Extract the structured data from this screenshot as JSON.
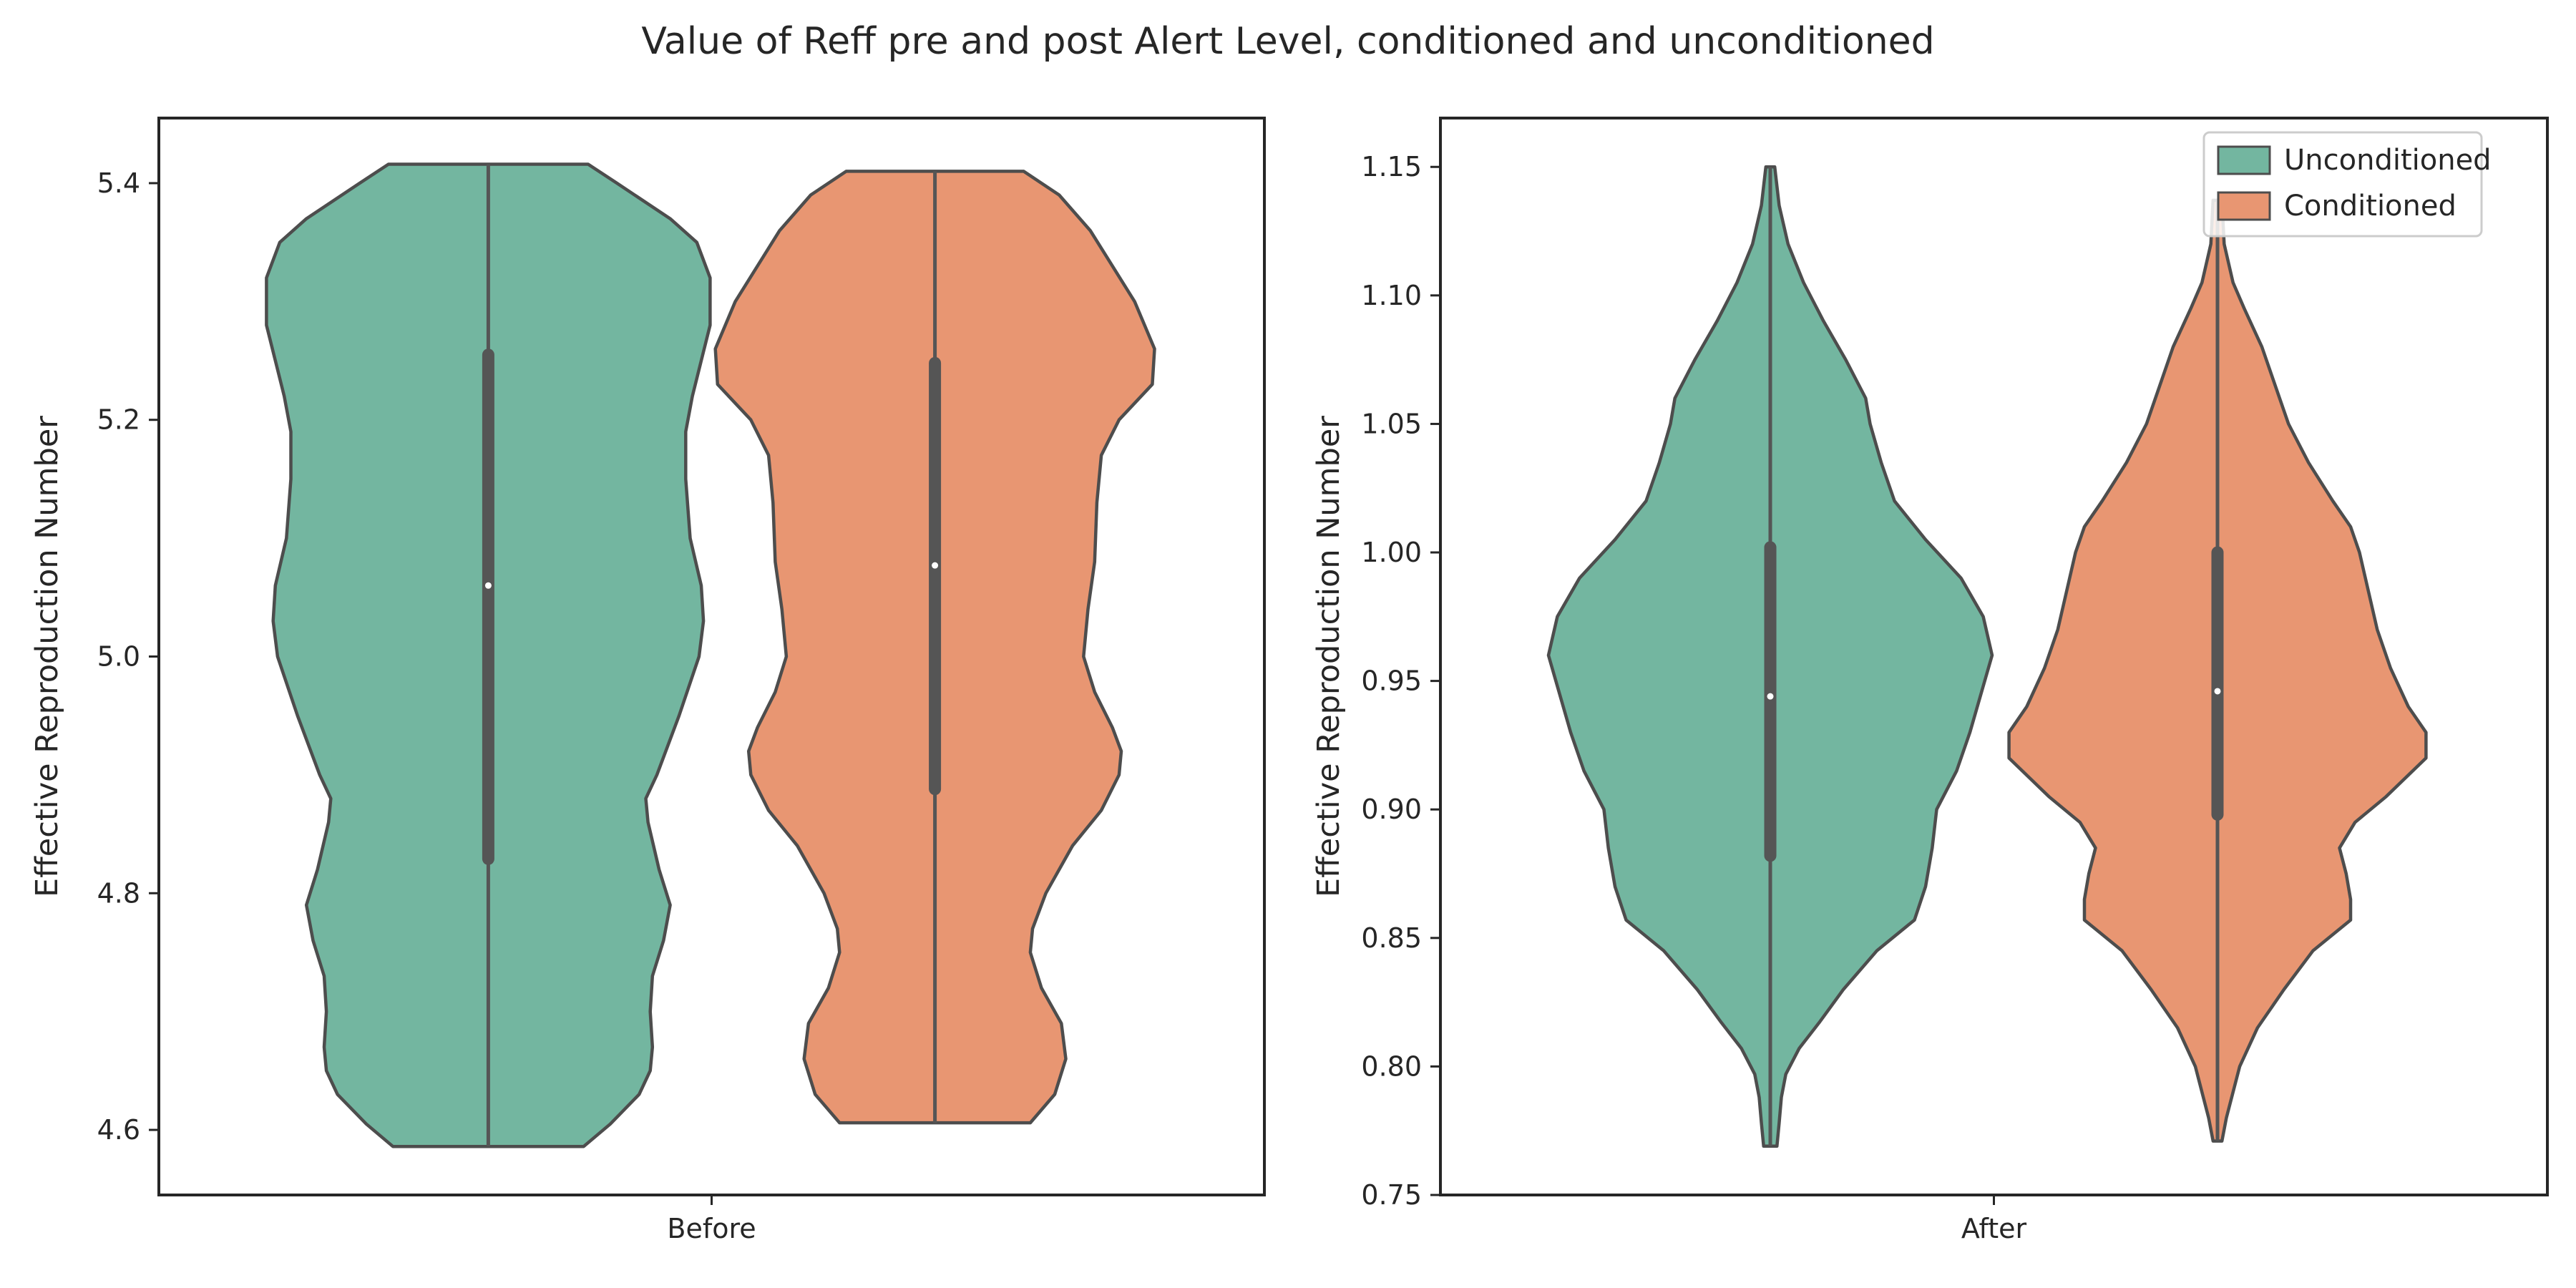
{
  "figure": {
    "title": "Value of Reff pre and post Alert Level, conditioned and unconditioned"
  },
  "colors": {
    "Unconditioned": "#73b6a0",
    "Conditioned": "#e89672",
    "outline": "#4d4d4d",
    "box": "#555555",
    "median": "#ffffff",
    "axes": "#262626"
  },
  "legend": {
    "placement": "top-right of right panel",
    "items": [
      {
        "label": "Unconditioned",
        "color": "#73b6a0"
      },
      {
        "label": "Conditioned",
        "color": "#e89672"
      }
    ]
  },
  "chart_data": [
    {
      "type": "violin",
      "category": "Before",
      "ylabel": "Effective Reproduction Number",
      "ylim": [
        4.545,
        5.455
      ],
      "yticks": [
        4.6,
        4.8,
        5.0,
        5.2,
        5.4
      ],
      "ytick_labels": [
        "4.6",
        "4.8",
        "5.0",
        "5.2",
        "5.4"
      ],
      "series": [
        {
          "name": "Unconditioned",
          "min": 4.586,
          "max": 5.416,
          "q1": 4.829,
          "median": 5.06,
          "q3": 5.255,
          "profile": [
            [
              4.586,
              0.43
            ],
            [
              4.605,
              0.55
            ],
            [
              4.63,
              0.68
            ],
            [
              4.65,
              0.73
            ],
            [
              4.67,
              0.74
            ],
            [
              4.7,
              0.73
            ],
            [
              4.73,
              0.74
            ],
            [
              4.76,
              0.79
            ],
            [
              4.79,
              0.82
            ],
            [
              4.82,
              0.77
            ],
            [
              4.86,
              0.72
            ],
            [
              4.88,
              0.71
            ],
            [
              4.9,
              0.76
            ],
            [
              4.95,
              0.86
            ],
            [
              5.0,
              0.95
            ],
            [
              5.03,
              0.97
            ],
            [
              5.06,
              0.96
            ],
            [
              5.1,
              0.91
            ],
            [
              5.15,
              0.89
            ],
            [
              5.19,
              0.89
            ],
            [
              5.22,
              0.92
            ],
            [
              5.25,
              0.96
            ],
            [
              5.28,
              1.0
            ],
            [
              5.32,
              1.0
            ],
            [
              5.35,
              0.94
            ],
            [
              5.37,
              0.82
            ],
            [
              5.4,
              0.58
            ],
            [
              5.416,
              0.45
            ]
          ]
        },
        {
          "name": "Conditioned",
          "min": 4.606,
          "max": 5.41,
          "q1": 4.888,
          "median": 5.077,
          "q3": 5.248,
          "profile": [
            [
              4.606,
              0.43
            ],
            [
              4.63,
              0.54
            ],
            [
              4.66,
              0.59
            ],
            [
              4.69,
              0.57
            ],
            [
              4.72,
              0.48
            ],
            [
              4.75,
              0.43
            ],
            [
              4.77,
              0.44
            ],
            [
              4.8,
              0.5
            ],
            [
              4.84,
              0.62
            ],
            [
              4.87,
              0.75
            ],
            [
              4.9,
              0.83
            ],
            [
              4.92,
              0.84
            ],
            [
              4.94,
              0.8
            ],
            [
              4.97,
              0.72
            ],
            [
              5.0,
              0.67
            ],
            [
              5.04,
              0.69
            ],
            [
              5.08,
              0.72
            ],
            [
              5.13,
              0.73
            ],
            [
              5.17,
              0.75
            ],
            [
              5.2,
              0.83
            ],
            [
              5.23,
              0.98
            ],
            [
              5.26,
              0.99
            ],
            [
              5.3,
              0.9
            ],
            [
              5.33,
              0.8
            ],
            [
              5.36,
              0.7
            ],
            [
              5.39,
              0.56
            ],
            [
              5.41,
              0.4
            ]
          ]
        }
      ],
      "xtick_labels": [
        "Before"
      ]
    },
    {
      "type": "violin",
      "category": "After",
      "ylabel": "Effective Reproduction Number",
      "ylim": [
        0.75,
        1.169
      ],
      "yticks": [
        0.75,
        0.8,
        0.85,
        0.9,
        0.95,
        1.0,
        1.05,
        1.1,
        1.15
      ],
      "ytick_labels": [
        "0.75",
        "0.80",
        "0.85",
        "0.90",
        "0.95",
        "1.00",
        "1.05",
        "1.10",
        "1.15"
      ],
      "series": [
        {
          "name": "Unconditioned",
          "min": 0.769,
          "max": 1.15,
          "q1": 0.882,
          "median": 0.944,
          "q3": 1.002,
          "profile": [
            [
              0.769,
              0.03
            ],
            [
              0.778,
              0.04
            ],
            [
              0.788,
              0.05
            ],
            [
              0.797,
              0.07
            ],
            [
              0.807,
              0.13
            ],
            [
              0.817,
              0.22
            ],
            [
              0.83,
              0.33
            ],
            [
              0.845,
              0.48
            ],
            [
              0.857,
              0.65
            ],
            [
              0.87,
              0.7
            ],
            [
              0.885,
              0.73
            ],
            [
              0.9,
              0.75
            ],
            [
              0.915,
              0.84
            ],
            [
              0.93,
              0.9
            ],
            [
              0.945,
              0.95
            ],
            [
              0.96,
              1.0
            ],
            [
              0.975,
              0.96
            ],
            [
              0.99,
              0.86
            ],
            [
              1.005,
              0.7
            ],
            [
              1.02,
              0.56
            ],
            [
              1.035,
              0.5
            ],
            [
              1.05,
              0.45
            ],
            [
              1.06,
              0.43
            ],
            [
              1.075,
              0.34
            ],
            [
              1.09,
              0.24
            ],
            [
              1.105,
              0.15
            ],
            [
              1.12,
              0.08
            ],
            [
              1.135,
              0.04
            ],
            [
              1.15,
              0.02
            ]
          ]
        },
        {
          "name": "Conditioned",
          "min": 0.771,
          "max": 1.137,
          "q1": 0.898,
          "median": 0.946,
          "q3": 1.0,
          "profile": [
            [
              0.771,
              0.02
            ],
            [
              0.78,
              0.04
            ],
            [
              0.79,
              0.07
            ],
            [
              0.8,
              0.1
            ],
            [
              0.815,
              0.18
            ],
            [
              0.83,
              0.3
            ],
            [
              0.845,
              0.43
            ],
            [
              0.857,
              0.6
            ],
            [
              0.865,
              0.6
            ],
            [
              0.875,
              0.58
            ],
            [
              0.885,
              0.55
            ],
            [
              0.895,
              0.62
            ],
            [
              0.905,
              0.76
            ],
            [
              0.92,
              0.94
            ],
            [
              0.93,
              0.94
            ],
            [
              0.94,
              0.86
            ],
            [
              0.955,
              0.78
            ],
            [
              0.97,
              0.72
            ],
            [
              0.985,
              0.68
            ],
            [
              1.0,
              0.64
            ],
            [
              1.01,
              0.6
            ],
            [
              1.02,
              0.52
            ],
            [
              1.035,
              0.41
            ],
            [
              1.05,
              0.32
            ],
            [
              1.065,
              0.26
            ],
            [
              1.08,
              0.2
            ],
            [
              1.095,
              0.12
            ],
            [
              1.105,
              0.07
            ],
            [
              1.12,
              0.03
            ],
            [
              1.137,
              0.02
            ]
          ]
        }
      ],
      "xtick_labels": [
        "After"
      ]
    }
  ]
}
